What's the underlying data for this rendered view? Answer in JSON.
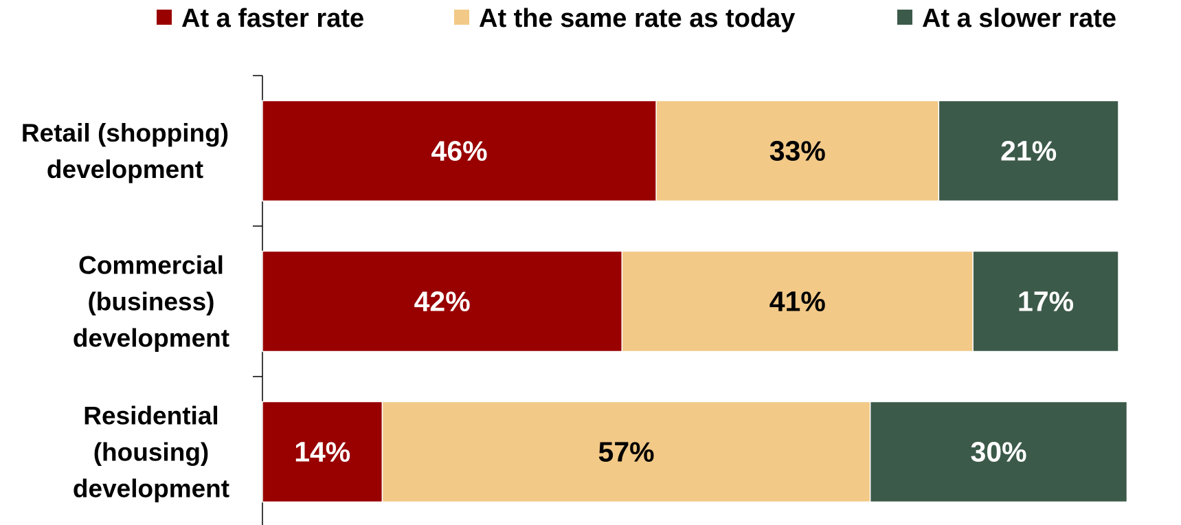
{
  "chart_data": {
    "type": "bar",
    "orientation": "horizontal",
    "stacked": true,
    "percent": true,
    "xlim": [
      0,
      100
    ],
    "grid": false,
    "legend_position": "top",
    "categories": [
      [
        "Retail (shopping)",
        "development"
      ],
      [
        "Commercial",
        "(business)",
        "development"
      ],
      [
        "Residential",
        "(housing)",
        "development"
      ]
    ],
    "series": [
      {
        "name": "At a faster rate",
        "color": "#990000",
        "label_color": "#ffffff",
        "values": [
          46,
          42,
          14
        ],
        "labels": [
          "46%",
          "42%",
          "14%"
        ]
      },
      {
        "name": "At the same rate as today",
        "color": "#f2c987",
        "label_color": "#000000",
        "values": [
          33,
          41,
          57
        ],
        "labels": [
          "33%",
          "41%",
          "57%"
        ]
      },
      {
        "name": "At a slower rate",
        "color": "#3c5a49",
        "label_color": "#ffffff",
        "values": [
          21,
          17,
          30
        ],
        "labels": [
          "21%",
          "17%",
          "30%"
        ]
      }
    ]
  }
}
